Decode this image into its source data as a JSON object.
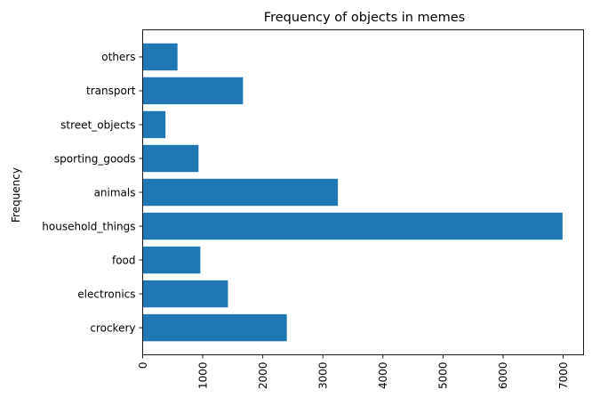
{
  "chart_data": {
    "type": "bar",
    "orientation": "horizontal",
    "title": "Frequency of objects in memes",
    "xlabel": "",
    "ylabel": "Frequency",
    "categories": [
      "crockery",
      "electronics",
      "food",
      "household_things",
      "animals",
      "sporting_goods",
      "street_objects",
      "transport",
      "others"
    ],
    "values": [
      2400,
      1420,
      960,
      6990,
      3250,
      930,
      380,
      1670,
      580
    ],
    "xlim": [
      0,
      7340
    ],
    "xticks": [
      0,
      1000,
      2000,
      3000,
      4000,
      5000,
      6000,
      7000
    ],
    "xtick_rotation": 90,
    "grid": false,
    "bar_color": "#1f77b4"
  }
}
